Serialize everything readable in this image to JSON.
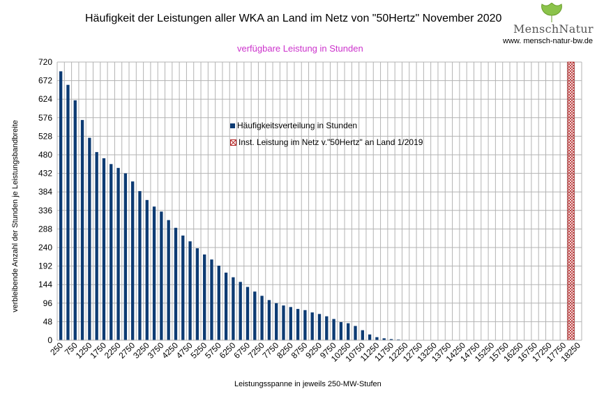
{
  "chart_data": {
    "type": "bar",
    "title": "Häufigkeit der Leistungen aller WKA an Land im Netz von \"50Hertz\" November 2020",
    "subtitle": "verfügbare Leistung in Stunden",
    "xlabel": "Leistungsspanne in jeweils 250-MW-Stufen",
    "ylabel": "verbleibende Anzahl der Stunden je Leistungsbandbreite",
    "ylim": [
      0,
      720
    ],
    "yticks": [
      0,
      48,
      96,
      144,
      192,
      240,
      288,
      336,
      384,
      432,
      480,
      528,
      576,
      624,
      672,
      720
    ],
    "xtick_labels": [
      "250",
      "750",
      "1250",
      "1750",
      "2250",
      "2750",
      "3250",
      "3750",
      "4250",
      "4750",
      "5250",
      "5750",
      "6250",
      "6750",
      "7250",
      "7750",
      "8250",
      "8750",
      "9250",
      "9750",
      "10250",
      "10750",
      "11250",
      "11750",
      "12250",
      "12750",
      "13250",
      "13750",
      "14250",
      "14750",
      "15250",
      "15750",
      "16250",
      "16750",
      "17250",
      "17750",
      "18250"
    ],
    "categories": [
      250,
      500,
      750,
      1000,
      1250,
      1500,
      1750,
      2000,
      2250,
      2500,
      2750,
      3000,
      3250,
      3500,
      3750,
      4000,
      4250,
      4500,
      4750,
      5000,
      5250,
      5500,
      5750,
      6000,
      6250,
      6500,
      6750,
      7000,
      7250,
      7500,
      7750,
      8000,
      8250,
      8500,
      8750,
      9000,
      9250,
      9500,
      9750,
      10000,
      10250,
      10500,
      10750,
      11000,
      11250,
      11500,
      11750,
      12000,
      12250,
      12500,
      12750,
      13000,
      13250,
      13500,
      13750,
      14000,
      14250,
      14500,
      14750,
      15000,
      15250,
      15500,
      15750,
      16000,
      16250,
      16500,
      16750,
      17000,
      17250,
      17500,
      17750,
      18000,
      18250
    ],
    "series": [
      {
        "name": "Häufigkeitsverteilung in Stunden",
        "color": "#0d3b73",
        "values": [
          696,
          661,
          621,
          570,
          524,
          487,
          471,
          456,
          446,
          432,
          411,
          386,
          363,
          346,
          333,
          311,
          291,
          271,
          256,
          238,
          222,
          209,
          193,
          175,
          163,
          151,
          138,
          126,
          115,
          104,
          96,
          90,
          86,
          81,
          78,
          72,
          68,
          62,
          55,
          47,
          44,
          37,
          26,
          15,
          8,
          5,
          3,
          2,
          1,
          0,
          0,
          0,
          0,
          0,
          0,
          0,
          0,
          0,
          0,
          0,
          0,
          0,
          0,
          0,
          0,
          0,
          0,
          0,
          0,
          0,
          0,
          0,
          0
        ]
      },
      {
        "name": "Inst. Leistung im Netz v.\"50Hertz\" an Land 1/2019",
        "color": "#b22222",
        "x_index": 71.5,
        "value": 720
      }
    ],
    "legend_position": "center"
  },
  "logo": {
    "text": "MenschNatur",
    "url": "www. mensch-natur-bw.de",
    "leaf_color": "#8bc34a"
  }
}
